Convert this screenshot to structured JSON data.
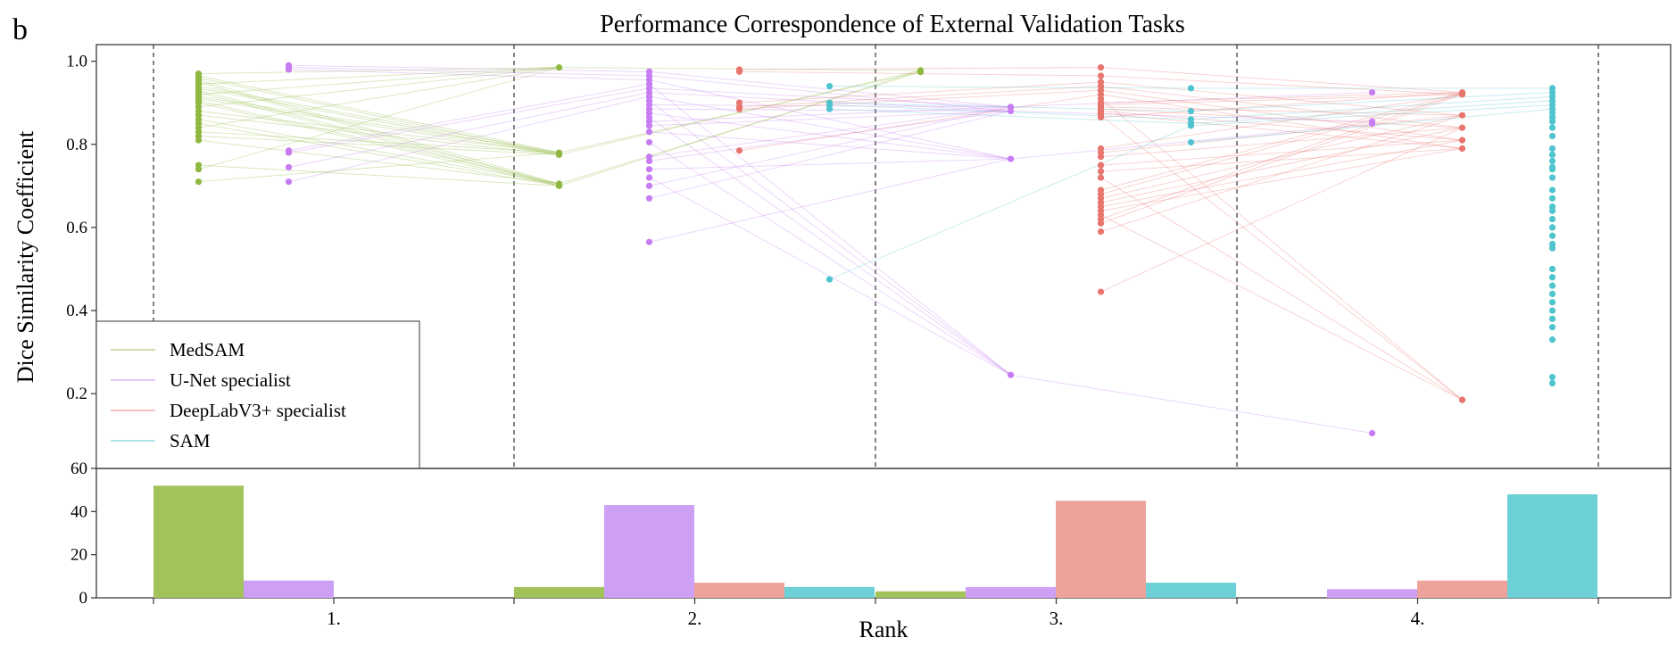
{
  "panel_label": "b",
  "chart_data": [
    {
      "type": "scatter",
      "title": "Performance Correspondence of External Validation Tasks",
      "xlabel": "",
      "ylabel": "Dice Similarity Coefficient",
      "ylim": [
        0.02,
        1.04
      ],
      "yticks": [
        "1.0",
        "0.8",
        "0.6",
        "0.4",
        "0.2"
      ],
      "ytick_values": [
        1.0,
        0.8,
        0.6,
        0.4,
        0.2
      ],
      "rank_groups": 4,
      "legend": {
        "placement": "lower-left",
        "entries": [
          "MedSAM",
          "U-Net specialist",
          "DeepLabV3+ specialist",
          "SAM"
        ]
      },
      "series": [
        {
          "name": "MedSAM",
          "color": "#8fb840",
          "points": [
            {
              "rank": 1,
              "values": [
                0.97,
                0.965,
                0.96,
                0.955,
                0.95,
                0.945,
                0.94,
                0.935,
                0.93,
                0.925,
                0.92,
                0.915,
                0.91,
                0.905,
                0.9,
                0.89,
                0.88,
                0.87,
                0.86,
                0.85,
                0.84,
                0.83,
                0.82,
                0.81,
                0.75,
                0.74,
                0.71
              ]
            },
            {
              "rank": 2,
              "values": [
                0.985,
                0.78,
                0.775,
                0.705,
                0.7
              ]
            },
            {
              "rank": 3,
              "values": [
                0.978,
                0.974
              ]
            }
          ]
        },
        {
          "name": "U-Net specialist",
          "color": "#c77cf2",
          "points": [
            {
              "rank": 1,
              "values": [
                0.99,
                0.985,
                0.98,
                0.785,
                0.78,
                0.745,
                0.71
              ]
            },
            {
              "rank": 2,
              "values": [
                0.975,
                0.965,
                0.955,
                0.945,
                0.935,
                0.925,
                0.915,
                0.905,
                0.895,
                0.885,
                0.875,
                0.865,
                0.855,
                0.845,
                0.83,
                0.805,
                0.77,
                0.76,
                0.74,
                0.72,
                0.7,
                0.67,
                0.565
              ]
            },
            {
              "rank": 3,
              "values": [
                0.89,
                0.88,
                0.765,
                0.245
              ]
            },
            {
              "rank": 4,
              "values": [
                0.925,
                0.855,
                0.85,
                0.105
              ]
            }
          ]
        },
        {
          "name": "DeepLabV3+ specialist",
          "color": "#e8766f",
          "points": [
            {
              "rank": 2,
              "values": [
                0.98,
                0.975,
                0.9,
                0.89,
                0.885,
                0.785
              ]
            },
            {
              "rank": 3,
              "values": [
                0.985,
                0.965,
                0.95,
                0.94,
                0.93,
                0.92,
                0.91,
                0.9,
                0.895,
                0.89,
                0.885,
                0.88,
                0.875,
                0.87,
                0.865,
                0.79,
                0.78,
                0.77,
                0.75,
                0.735,
                0.72,
                0.69,
                0.68,
                0.67,
                0.66,
                0.65,
                0.64,
                0.63,
                0.62,
                0.61,
                0.59,
                0.445
              ]
            },
            {
              "rank": 4,
              "values": [
                0.925,
                0.92,
                0.87,
                0.84,
                0.81,
                0.79,
                0.185
              ]
            }
          ]
        },
        {
          "name": "SAM",
          "color": "#4fc4cf",
          "points": [
            {
              "rank": 2,
              "values": [
                0.94,
                0.9,
                0.895,
                0.885,
                0.475
              ]
            },
            {
              "rank": 3,
              "values": [
                0.935,
                0.88,
                0.86,
                0.85,
                0.845,
                0.805
              ]
            },
            {
              "rank": 4,
              "values": [
                0.935,
                0.925,
                0.915,
                0.905,
                0.895,
                0.885,
                0.875,
                0.865,
                0.855,
                0.84,
                0.82,
                0.79,
                0.775,
                0.76,
                0.745,
                0.74,
                0.72,
                0.69,
                0.67,
                0.65,
                0.64,
                0.62,
                0.6,
                0.58,
                0.56,
                0.55,
                0.5,
                0.48,
                0.46,
                0.44,
                0.42,
                0.4,
                0.38,
                0.36,
                0.33,
                0.24,
                0.225
              ]
            }
          ]
        }
      ]
    },
    {
      "type": "bar",
      "title": "",
      "xlabel": "Rank",
      "ylabel": "",
      "categories": [
        "1.",
        "2.",
        "3.",
        "4."
      ],
      "ylim": [
        0,
        60
      ],
      "yticks": [
        "60",
        "40",
        "20",
        "0"
      ],
      "ytick_values": [
        60,
        40,
        20,
        0
      ],
      "series": [
        {
          "name": "MedSAM",
          "color": "#a2c25a",
          "values": [
            52,
            5,
            3,
            0
          ]
        },
        {
          "name": "U-Net specialist",
          "color": "#cda0f5",
          "values": [
            8,
            43,
            5,
            4
          ]
        },
        {
          "name": "DeepLabV3+ specialist",
          "color": "#eda29b",
          "values": [
            0,
            7,
            45,
            8
          ]
        },
        {
          "name": "SAM",
          "color": "#6cd0d6",
          "values": [
            0,
            5,
            7,
            48
          ]
        }
      ]
    }
  ]
}
